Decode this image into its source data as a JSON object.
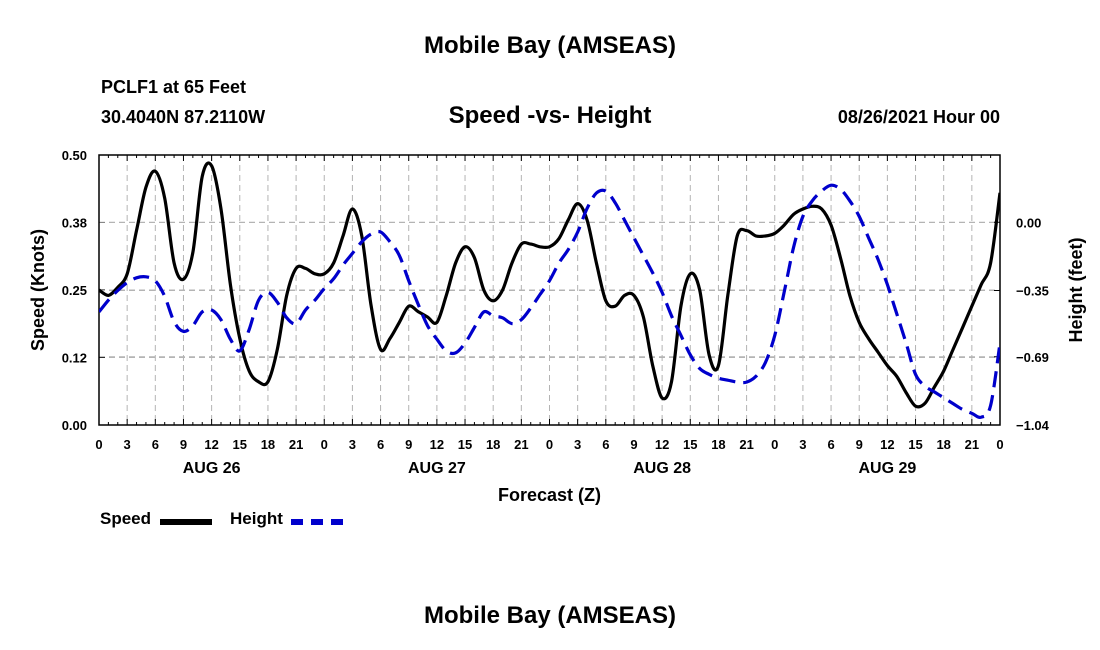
{
  "header": {
    "title": "Mobile Bay (AMSEAS)",
    "station": "PCLF1 at 65 Feet",
    "coords": "30.4040N  87.2110W",
    "chart_title": "Speed -vs- Height",
    "datetime": "08/26/2021 Hour 00"
  },
  "footer": {
    "title": "Mobile Bay (AMSEAS)"
  },
  "legend": {
    "speed_label": "Speed",
    "height_label": "Height"
  },
  "colors": {
    "speed": "#000000",
    "height": "#0000cc",
    "grid": "#b4b4b4"
  },
  "chart_data": {
    "type": "line",
    "xlabel": "Forecast (Z)",
    "ylabel_left": "Speed (Knots)",
    "ylabel_right": "Height (feet)",
    "x_range_hours": [
      0,
      96
    ],
    "x_ticks": [
      {
        "h": 0,
        "label": "0"
      },
      {
        "h": 3,
        "label": "3"
      },
      {
        "h": 6,
        "label": "6"
      },
      {
        "h": 9,
        "label": "9"
      },
      {
        "h": 12,
        "label": "12"
      },
      {
        "h": 15,
        "label": "15"
      },
      {
        "h": 18,
        "label": "18"
      },
      {
        "h": 21,
        "label": "21"
      },
      {
        "h": 24,
        "label": "0"
      },
      {
        "h": 27,
        "label": "3"
      },
      {
        "h": 30,
        "label": "6"
      },
      {
        "h": 33,
        "label": "9"
      },
      {
        "h": 36,
        "label": "12"
      },
      {
        "h": 39,
        "label": "15"
      },
      {
        "h": 42,
        "label": "18"
      },
      {
        "h": 45,
        "label": "21"
      },
      {
        "h": 48,
        "label": "0"
      },
      {
        "h": 51,
        "label": "3"
      },
      {
        "h": 54,
        "label": "6"
      },
      {
        "h": 57,
        "label": "9"
      },
      {
        "h": 60,
        "label": "12"
      },
      {
        "h": 63,
        "label": "15"
      },
      {
        "h": 66,
        "label": "18"
      },
      {
        "h": 69,
        "label": "21"
      },
      {
        "h": 72,
        "label": "0"
      },
      {
        "h": 75,
        "label": "3"
      },
      {
        "h": 78,
        "label": "6"
      },
      {
        "h": 81,
        "label": "9"
      },
      {
        "h": 84,
        "label": "12"
      },
      {
        "h": 87,
        "label": "15"
      },
      {
        "h": 90,
        "label": "18"
      },
      {
        "h": 93,
        "label": "21"
      },
      {
        "h": 96,
        "label": "0"
      }
    ],
    "day_labels": [
      {
        "h": 12,
        "label": "AUG 26"
      },
      {
        "h": 36,
        "label": "AUG 27"
      },
      {
        "h": 60,
        "label": "AUG 28"
      },
      {
        "h": 84,
        "label": "AUG 29"
      }
    ],
    "left_axis": {
      "range": [
        0,
        0.5
      ],
      "ticks": [
        {
          "v": 0.0,
          "label": "0.00"
        },
        {
          "v": 0.125,
          "label": "0.12"
        },
        {
          "v": 0.25,
          "label": "0.25"
        },
        {
          "v": 0.375,
          "label": "0.38"
        },
        {
          "v": 0.5,
          "label": "0.50"
        }
      ]
    },
    "right_axis": {
      "range": [
        -1.04,
        0.345
      ],
      "ticks": [
        {
          "v": 0.0,
          "label": "0.00"
        },
        {
          "v": -0.35,
          "label": "−0.35"
        },
        {
          "v": -0.69,
          "label": "−0.69"
        },
        {
          "v": -1.04,
          "label": "−1.04"
        }
      ]
    },
    "series": [
      {
        "name": "Speed",
        "axis": "left",
        "style": "solid",
        "points": [
          [
            0,
            0.25
          ],
          [
            1,
            0.24
          ],
          [
            2,
            0.255
          ],
          [
            3,
            0.28
          ],
          [
            4,
            0.36
          ],
          [
            5,
            0.44
          ],
          [
            6,
            0.47
          ],
          [
            7,
            0.42
          ],
          [
            8,
            0.3
          ],
          [
            9,
            0.27
          ],
          [
            10,
            0.32
          ],
          [
            11,
            0.46
          ],
          [
            12,
            0.48
          ],
          [
            13,
            0.4
          ],
          [
            14,
            0.26
          ],
          [
            15,
            0.16
          ],
          [
            16,
            0.1
          ],
          [
            17,
            0.08
          ],
          [
            18,
            0.08
          ],
          [
            19,
            0.14
          ],
          [
            20,
            0.24
          ],
          [
            21,
            0.29
          ],
          [
            22,
            0.29
          ],
          [
            23,
            0.28
          ],
          [
            24,
            0.28
          ],
          [
            25,
            0.3
          ],
          [
            26,
            0.35
          ],
          [
            27,
            0.4
          ],
          [
            28,
            0.35
          ],
          [
            29,
            0.22
          ],
          [
            30,
            0.14
          ],
          [
            31,
            0.16
          ],
          [
            32,
            0.19
          ],
          [
            33,
            0.22
          ],
          [
            34,
            0.21
          ],
          [
            35,
            0.2
          ],
          [
            36,
            0.19
          ],
          [
            37,
            0.24
          ],
          [
            38,
            0.3
          ],
          [
            39,
            0.33
          ],
          [
            40,
            0.31
          ],
          [
            41,
            0.25
          ],
          [
            42,
            0.23
          ],
          [
            43,
            0.25
          ],
          [
            44,
            0.3
          ],
          [
            45,
            0.335
          ],
          [
            46,
            0.335
          ],
          [
            47,
            0.33
          ],
          [
            48,
            0.33
          ],
          [
            49,
            0.345
          ],
          [
            50,
            0.38
          ],
          [
            51,
            0.41
          ],
          [
            52,
            0.38
          ],
          [
            53,
            0.3
          ],
          [
            54,
            0.23
          ],
          [
            55,
            0.22
          ],
          [
            56,
            0.24
          ],
          [
            57,
            0.24
          ],
          [
            58,
            0.2
          ],
          [
            59,
            0.11
          ],
          [
            60,
            0.05
          ],
          [
            61,
            0.08
          ],
          [
            62,
            0.22
          ],
          [
            63,
            0.28
          ],
          [
            64,
            0.25
          ],
          [
            65,
            0.13
          ],
          [
            66,
            0.11
          ],
          [
            67,
            0.24
          ],
          [
            68,
            0.35
          ],
          [
            69,
            0.36
          ],
          [
            70,
            0.35
          ],
          [
            71,
            0.35
          ],
          [
            72,
            0.355
          ],
          [
            73,
            0.37
          ],
          [
            74,
            0.39
          ],
          [
            75,
            0.4
          ],
          [
            76,
            0.405
          ],
          [
            77,
            0.4
          ],
          [
            78,
            0.37
          ],
          [
            79,
            0.31
          ],
          [
            80,
            0.24
          ],
          [
            81,
            0.19
          ],
          [
            82,
            0.16
          ],
          [
            83,
            0.135
          ],
          [
            84,
            0.11
          ],
          [
            85,
            0.09
          ],
          [
            86,
            0.06
          ],
          [
            87,
            0.035
          ],
          [
            88,
            0.04
          ],
          [
            89,
            0.07
          ],
          [
            90,
            0.1
          ],
          [
            91,
            0.14
          ],
          [
            92,
            0.18
          ],
          [
            93,
            0.22
          ],
          [
            94,
            0.26
          ],
          [
            95,
            0.3
          ],
          [
            96,
            0.43
          ]
        ]
      },
      {
        "name": "Height",
        "axis": "right",
        "style": "dashed",
        "points": [
          [
            0,
            -0.46
          ],
          [
            1,
            -0.4
          ],
          [
            2,
            -0.35
          ],
          [
            3,
            -0.31
          ],
          [
            4,
            -0.285
          ],
          [
            5,
            -0.28
          ],
          [
            6,
            -0.3
          ],
          [
            7,
            -0.38
          ],
          [
            8,
            -0.51
          ],
          [
            9,
            -0.56
          ],
          [
            10,
            -0.53
          ],
          [
            11,
            -0.46
          ],
          [
            12,
            -0.45
          ],
          [
            13,
            -0.5
          ],
          [
            14,
            -0.6
          ],
          [
            15,
            -0.66
          ],
          [
            16,
            -0.55
          ],
          [
            17,
            -0.4
          ],
          [
            18,
            -0.36
          ],
          [
            19,
            -0.41
          ],
          [
            20,
            -0.49
          ],
          [
            21,
            -0.52
          ],
          [
            22,
            -0.45
          ],
          [
            23,
            -0.4
          ],
          [
            24,
            -0.34
          ],
          [
            25,
            -0.29
          ],
          [
            26,
            -0.22
          ],
          [
            27,
            -0.16
          ],
          [
            28,
            -0.1
          ],
          [
            29,
            -0.06
          ],
          [
            30,
            -0.05
          ],
          [
            31,
            -0.1
          ],
          [
            32,
            -0.17
          ],
          [
            33,
            -0.3
          ],
          [
            34,
            -0.42
          ],
          [
            35,
            -0.53
          ],
          [
            36,
            -0.6
          ],
          [
            37,
            -0.66
          ],
          [
            38,
            -0.67
          ],
          [
            39,
            -0.62
          ],
          [
            40,
            -0.54
          ],
          [
            41,
            -0.46
          ],
          [
            42,
            -0.48
          ],
          [
            43,
            -0.49
          ],
          [
            44,
            -0.52
          ],
          [
            45,
            -0.5
          ],
          [
            46,
            -0.44
          ],
          [
            47,
            -0.37
          ],
          [
            48,
            -0.3
          ],
          [
            49,
            -0.21
          ],
          [
            50,
            -0.14
          ],
          [
            51,
            -0.05
          ],
          [
            52,
            0.07
          ],
          [
            53,
            0.15
          ],
          [
            54,
            0.16
          ],
          [
            55,
            0.1
          ],
          [
            56,
            0.01
          ],
          [
            57,
            -0.08
          ],
          [
            58,
            -0.17
          ],
          [
            59,
            -0.26
          ],
          [
            60,
            -0.36
          ],
          [
            61,
            -0.48
          ],
          [
            62,
            -0.58
          ],
          [
            63,
            -0.68
          ],
          [
            64,
            -0.75
          ],
          [
            65,
            -0.78
          ],
          [
            66,
            -0.8
          ],
          [
            67,
            -0.81
          ],
          [
            68,
            -0.82
          ],
          [
            69,
            -0.82
          ],
          [
            70,
            -0.79
          ],
          [
            71,
            -0.72
          ],
          [
            72,
            -0.58
          ],
          [
            73,
            -0.36
          ],
          [
            74,
            -0.13
          ],
          [
            75,
            0.03
          ],
          [
            76,
            0.11
          ],
          [
            77,
            0.16
          ],
          [
            78,
            0.19
          ],
          [
            79,
            0.17
          ],
          [
            80,
            0.11
          ],
          [
            81,
            0.03
          ],
          [
            82,
            -0.08
          ],
          [
            83,
            -0.19
          ],
          [
            84,
            -0.32
          ],
          [
            85,
            -0.47
          ],
          [
            86,
            -0.62
          ],
          [
            87,
            -0.78
          ],
          [
            88,
            -0.84
          ],
          [
            89,
            -0.87
          ],
          [
            90,
            -0.9
          ],
          [
            91,
            -0.93
          ],
          [
            92,
            -0.96
          ],
          [
            93,
            -0.98
          ],
          [
            94,
            -1.0
          ],
          [
            95,
            -0.94
          ],
          [
            96,
            -0.62
          ]
        ]
      }
    ],
    "grid": true,
    "legend_position": "bottom-left"
  }
}
